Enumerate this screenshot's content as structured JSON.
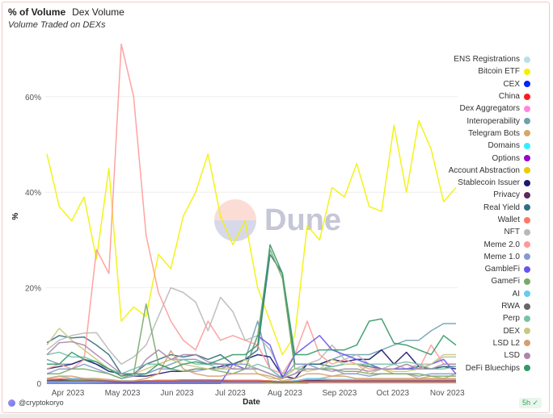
{
  "header": {
    "title": "% of Volume",
    "tab": "Dex Volume",
    "subtitle": "Volume Traded on DEXs"
  },
  "footer": {
    "author": "@cryptokoryo",
    "freshness": "5h ✓"
  },
  "watermark": {
    "text": "Dune"
  },
  "chart_data": {
    "type": "line",
    "title": "Volume Traded on DEXs",
    "xlabel": "Date",
    "ylabel": "%",
    "x_start": "2023-03-20",
    "x_step_days": 7,
    "points": 34,
    "ylim": [
      0,
      75
    ],
    "yticks": [
      {
        "v": 0,
        "label": "0"
      },
      {
        "v": 20,
        "label": "20%"
      },
      {
        "v": 40,
        "label": "40%"
      },
      {
        "v": 60,
        "label": "60%"
      }
    ],
    "xticks": [
      {
        "v": 1.7,
        "label": "Apr 2023"
      },
      {
        "v": 6.1,
        "label": "May 2023"
      },
      {
        "v": 10.5,
        "label": "Jun 2023"
      },
      {
        "v": 14.8,
        "label": "Jul 2023"
      },
      {
        "v": 19.2,
        "label": "Aug 2023"
      },
      {
        "v": 23.6,
        "label": "Sep 2023"
      },
      {
        "v": 27.9,
        "label": "Oct 2023"
      },
      {
        "v": 32.3,
        "label": "Nov 2023"
      }
    ],
    "grid": true,
    "legend": "right",
    "series": [
      {
        "name": "ENS Registrations",
        "color": "#b9e0e6",
        "values": [
          0.3,
          0.3,
          0.4,
          0.3,
          0.3,
          0.2,
          0.2,
          0.2,
          0.3,
          0.3,
          0.3,
          0.2,
          0.2,
          0.3,
          0.3,
          0.2,
          0.2,
          0.2,
          0.2,
          0.1,
          0.2,
          0.2,
          0.2,
          0.2,
          0.3,
          0.3,
          0.2,
          0.2,
          0.2,
          0.2,
          0.2,
          0.2,
          0.2,
          0.2
        ]
      },
      {
        "name": "Bitcoin ETF",
        "color": "#f2f200",
        "values": [
          48,
          37,
          34,
          39,
          26,
          45,
          13,
          16,
          14,
          27,
          24,
          35,
          40,
          48,
          35,
          29,
          34,
          20,
          13,
          6,
          10,
          33,
          30,
          41,
          39,
          46,
          37,
          36,
          54,
          40,
          55,
          49,
          38,
          41
        ]
      },
      {
        "name": "CEX",
        "color": "#0022ff",
        "values": [
          0.5,
          0.6,
          0.5,
          0.5,
          0.4,
          0.3,
          0.3,
          0.3,
          0.4,
          0.4,
          0.4,
          0.5,
          0.5,
          0.5,
          0.4,
          0.4,
          0.4,
          0.4,
          0.3,
          0.2,
          0.3,
          0.4,
          0.4,
          0.4,
          0.4,
          0.4,
          0.4,
          0.4,
          0.4,
          0.4,
          0.4,
          0.4,
          0.4,
          0.4
        ]
      },
      {
        "name": "China",
        "color": "#ff1a1a",
        "values": [
          0.3,
          0.3,
          0.3,
          0.3,
          0.2,
          0.2,
          0.2,
          0.2,
          0.2,
          0.3,
          0.3,
          0.3,
          0.3,
          0.3,
          0.3,
          0.3,
          0.3,
          0.3,
          0.2,
          0.1,
          0.2,
          0.5,
          0.5,
          0.4,
          0.4,
          0.4,
          0.3,
          0.3,
          0.3,
          0.3,
          0.3,
          0.3,
          0.3,
          0.3
        ]
      },
      {
        "name": "Dex Aggregators",
        "color": "#ff88dd",
        "values": [
          1,
          1.5,
          1,
          1,
          0.8,
          0.5,
          0.5,
          0.5,
          0.5,
          0.3,
          0.3,
          0.4,
          0.4,
          0.4,
          0.4,
          0.5,
          0.5,
          0.5,
          0.3,
          0.2,
          0.3,
          0.5,
          0.5,
          0.5,
          0.5,
          0.5,
          0.5,
          0.5,
          0.5,
          0.5,
          0.5,
          0.5,
          0.5,
          0.5
        ]
      },
      {
        "name": "Interoperability",
        "color": "#6fa0b0",
        "values": [
          5,
          4,
          4,
          5,
          4,
          3,
          2,
          1.5,
          2,
          3,
          4,
          5,
          5,
          4,
          4,
          4,
          5,
          13,
          3,
          1,
          2,
          4,
          4,
          5,
          6,
          6,
          6,
          7,
          8,
          9,
          9,
          11,
          12.5,
          12.5
        ]
      },
      {
        "name": "Telegram Bots",
        "color": "#d4a86a",
        "values": [
          0,
          0,
          0,
          0,
          0,
          0,
          0,
          0,
          0,
          0,
          0,
          0,
          0,
          0,
          0,
          0,
          0,
          0,
          0,
          0,
          0,
          0,
          1,
          1.5,
          2,
          2,
          4,
          3,
          2,
          2,
          1,
          1.5,
          1,
          2
        ]
      },
      {
        "name": "Domains",
        "color": "#33eeff",
        "values": [
          1,
          1.5,
          1,
          1,
          1,
          0.5,
          0.5,
          0.5,
          0.5,
          0.5,
          0.5,
          0.4,
          0.4,
          0.4,
          0.4,
          0.4,
          0.3,
          0.3,
          0.3,
          0.2,
          0.3,
          0.3,
          0.3,
          0.3,
          0.3,
          0.3,
          0.3,
          0.3,
          0.3,
          0.3,
          0.3,
          0.3,
          0.3,
          0.3
        ]
      },
      {
        "name": "Options",
        "color": "#9900cc",
        "values": [
          0.3,
          0.3,
          0.3,
          0.3,
          0.3,
          0.2,
          0.2,
          0.2,
          0.2,
          0.2,
          0.2,
          0.2,
          0.2,
          0.2,
          0.2,
          0.2,
          0.2,
          0.2,
          0.2,
          0.1,
          0.2,
          0.2,
          0.2,
          0.2,
          0.2,
          0.2,
          0.2,
          0.2,
          0.2,
          0.2,
          0.2,
          0.2,
          0.2,
          0.2
        ]
      },
      {
        "name": "Account Abstraction",
        "color": "#e6cc00",
        "values": [
          0.5,
          0.5,
          0.5,
          0.5,
          0.4,
          0.3,
          0.3,
          0.3,
          0.3,
          0.3,
          0.3,
          0.3,
          0.3,
          0.3,
          0.3,
          0.3,
          0.3,
          0.3,
          0.2,
          0.1,
          0.2,
          0.3,
          0.3,
          0.3,
          0.3,
          0.3,
          0.3,
          0.3,
          0.3,
          0.3,
          0.3,
          0.3,
          0.3,
          0.3
        ]
      },
      {
        "name": "Stablecoin Issuer",
        "color": "#1a1a6e",
        "values": [
          3,
          3.5,
          4,
          5,
          4,
          2.5,
          2,
          1.5,
          1.5,
          2,
          2.5,
          2.5,
          3,
          3,
          3.5,
          4,
          5,
          6,
          5.5,
          1.5,
          1,
          4,
          4,
          5,
          4.5,
          5,
          5,
          7,
          4,
          6.5,
          3.5,
          3,
          3.5,
          3
        ]
      },
      {
        "name": "Privacy",
        "color": "#5c2a5c",
        "values": [
          0.6,
          0.7,
          0.8,
          0.8,
          0.6,
          0.5,
          0.4,
          0.4,
          0.5,
          0.6,
          0.6,
          0.7,
          0.7,
          0.7,
          0.6,
          0.6,
          0.6,
          0.6,
          0.5,
          0.3,
          0.5,
          0.6,
          0.6,
          0.6,
          0.6,
          0.6,
          0.6,
          0.6,
          0.6,
          0.6,
          0.6,
          0.6,
          0.6,
          0.6
        ]
      },
      {
        "name": "Real Yield",
        "color": "#336e80",
        "values": [
          8.5,
          10,
          9.5,
          9.7,
          8,
          6,
          2,
          2,
          4,
          5,
          6,
          5.5,
          6,
          5,
          6,
          4,
          5,
          7,
          27,
          23,
          4,
          4,
          4,
          3.5,
          4,
          4,
          3.5,
          3,
          3,
          3,
          3.5,
          3,
          3.5,
          3.5
        ]
      },
      {
        "name": "Wallet",
        "color": "#ff7766",
        "values": [
          0.8,
          1,
          0.8,
          0.8,
          0.6,
          0.5,
          0.4,
          0.4,
          0.5,
          0.6,
          0.6,
          0.7,
          0.7,
          0.7,
          0.7,
          0.6,
          0.6,
          0.6,
          0.5,
          0.3,
          0.5,
          0.8,
          0.8,
          0.7,
          0.7,
          0.7,
          0.7,
          0.7,
          0.7,
          0.7,
          0.7,
          0.7,
          0.7,
          0.7
        ]
      },
      {
        "name": "NFT",
        "color": "#b8b8b8",
        "values": [
          7,
          9,
          10,
          10.5,
          10.6,
          7,
          4,
          5.5,
          8,
          14,
          20,
          19,
          17,
          11,
          18,
          15,
          9,
          10,
          7,
          2,
          3,
          4,
          5,
          8,
          5,
          6,
          4,
          3,
          4,
          3,
          4,
          4,
          5.5,
          5.5
        ]
      },
      {
        "name": "Meme 2.0",
        "color": "#ff9999",
        "values": [
          3,
          4,
          3,
          5,
          28,
          23,
          71,
          60,
          31,
          19,
          13,
          9,
          7,
          13,
          9,
          10,
          9,
          8,
          3,
          2,
          6,
          13,
          6,
          4,
          5,
          4,
          3,
          3,
          3,
          4,
          3,
          8,
          4,
          4
        ]
      },
      {
        "name": "Meme 1.0",
        "color": "#8899cc",
        "values": [
          2,
          3,
          3,
          4,
          3,
          2,
          1,
          1.5,
          2,
          3,
          3,
          2.5,
          2.5,
          3,
          3,
          4,
          4,
          3,
          2,
          1,
          4,
          4,
          3,
          3,
          2,
          2,
          1.5,
          2,
          2,
          2,
          1.5,
          2,
          2,
          2
        ]
      },
      {
        "name": "GambleFi",
        "color": "#6655ee",
        "values": [
          0,
          0,
          0,
          0,
          0,
          0,
          0,
          0,
          0,
          0,
          0,
          0,
          0,
          0,
          0,
          4,
          3,
          10,
          8,
          1,
          6,
          8,
          10,
          7,
          6,
          5,
          4,
          3,
          3,
          3,
          3,
          4,
          5,
          2
        ]
      },
      {
        "name": "GameFi",
        "color": "#77aa66",
        "values": [
          2,
          2,
          3,
          3,
          2.5,
          2,
          1,
          2,
          16.6,
          4,
          3,
          2.5,
          3,
          3,
          2.5,
          2,
          3,
          10,
          28,
          22,
          3,
          3,
          3,
          3,
          2.5,
          2.5,
          2,
          2,
          2,
          2,
          2,
          1.5,
          1.5,
          1.5
        ]
      },
      {
        "name": "AI",
        "color": "#66ccee",
        "values": [
          0.3,
          0.3,
          0.3,
          0.3,
          0.3,
          0.3,
          0.3,
          0.3,
          0.3,
          0.3,
          0.3,
          0.3,
          0.3,
          0.3,
          0.3,
          0.3,
          0.3,
          0.3,
          0.3,
          0.2,
          0.5,
          1,
          1,
          0.8,
          0.8,
          0.8,
          0.8,
          0.8,
          0.8,
          0.8,
          0.8,
          0.8,
          0.8,
          0.8
        ]
      },
      {
        "name": "RWA",
        "color": "#666666",
        "values": [
          0.5,
          0.5,
          0.5,
          0.5,
          0.5,
          0.4,
          0.3,
          0.3,
          0.4,
          0.4,
          0.4,
          0.4,
          0.4,
          0.4,
          0.4,
          0.4,
          0.4,
          0.4,
          0.3,
          0.2,
          0.3,
          0.4,
          0.4,
          0.4,
          0.4,
          0.4,
          0.4,
          0.4,
          0.4,
          0.4,
          0.4,
          0.4,
          0.4,
          0.4
        ]
      },
      {
        "name": "Perp",
        "color": "#77c2aa",
        "values": [
          6,
          6.5,
          5.5,
          5.5,
          4.5,
          3,
          2,
          3,
          4,
          4,
          5,
          5,
          4,
          4,
          3,
          3,
          3,
          4,
          3,
          1,
          3,
          3,
          3,
          3.5,
          4,
          4,
          4,
          4,
          4,
          4.5,
          4,
          3,
          3,
          3.5
        ]
      },
      {
        "name": "DEX",
        "color": "#c8c880",
        "values": [
          8,
          11.5,
          9,
          7,
          5,
          3,
          1.5,
          2,
          3,
          4,
          5,
          4,
          3.5,
          3,
          3,
          3,
          5,
          2,
          1,
          1,
          3,
          2.5,
          3,
          5,
          4,
          4,
          2,
          3,
          2.5,
          2.5,
          3,
          4,
          6,
          6
        ]
      },
      {
        "name": "LSD L2",
        "color": "#d4a070",
        "values": [
          1,
          1.5,
          1.5,
          1,
          1,
          0.8,
          0.5,
          0.5,
          1,
          2,
          6.8,
          3,
          2,
          1.5,
          1.5,
          2,
          2,
          2,
          1.5,
          0.5,
          1,
          2,
          2,
          1.5,
          1.5,
          1,
          1,
          1,
          1,
          1,
          1,
          1,
          1,
          1
        ]
      },
      {
        "name": "LSD",
        "color": "#aa88aa",
        "values": [
          6,
          8.5,
          8.7,
          8,
          6,
          4,
          2,
          1.5,
          5,
          7,
          5,
          6,
          6,
          4.5,
          4,
          3,
          3,
          3,
          2,
          1,
          2,
          3,
          3,
          2.5,
          3,
          3,
          2.5,
          3,
          3,
          4,
          3,
          3,
          4,
          4
        ]
      },
      {
        "name": "DeFi Bluechips",
        "color": "#339966",
        "values": [
          4,
          4,
          6.5,
          5,
          4.5,
          3,
          1.5,
          2,
          2,
          4,
          3,
          4,
          4.5,
          4,
          5,
          6,
          6,
          8,
          29,
          23,
          6,
          6,
          7,
          7,
          7,
          8,
          13,
          13.5,
          8.4,
          8,
          7,
          6,
          10,
          8
        ]
      }
    ]
  }
}
